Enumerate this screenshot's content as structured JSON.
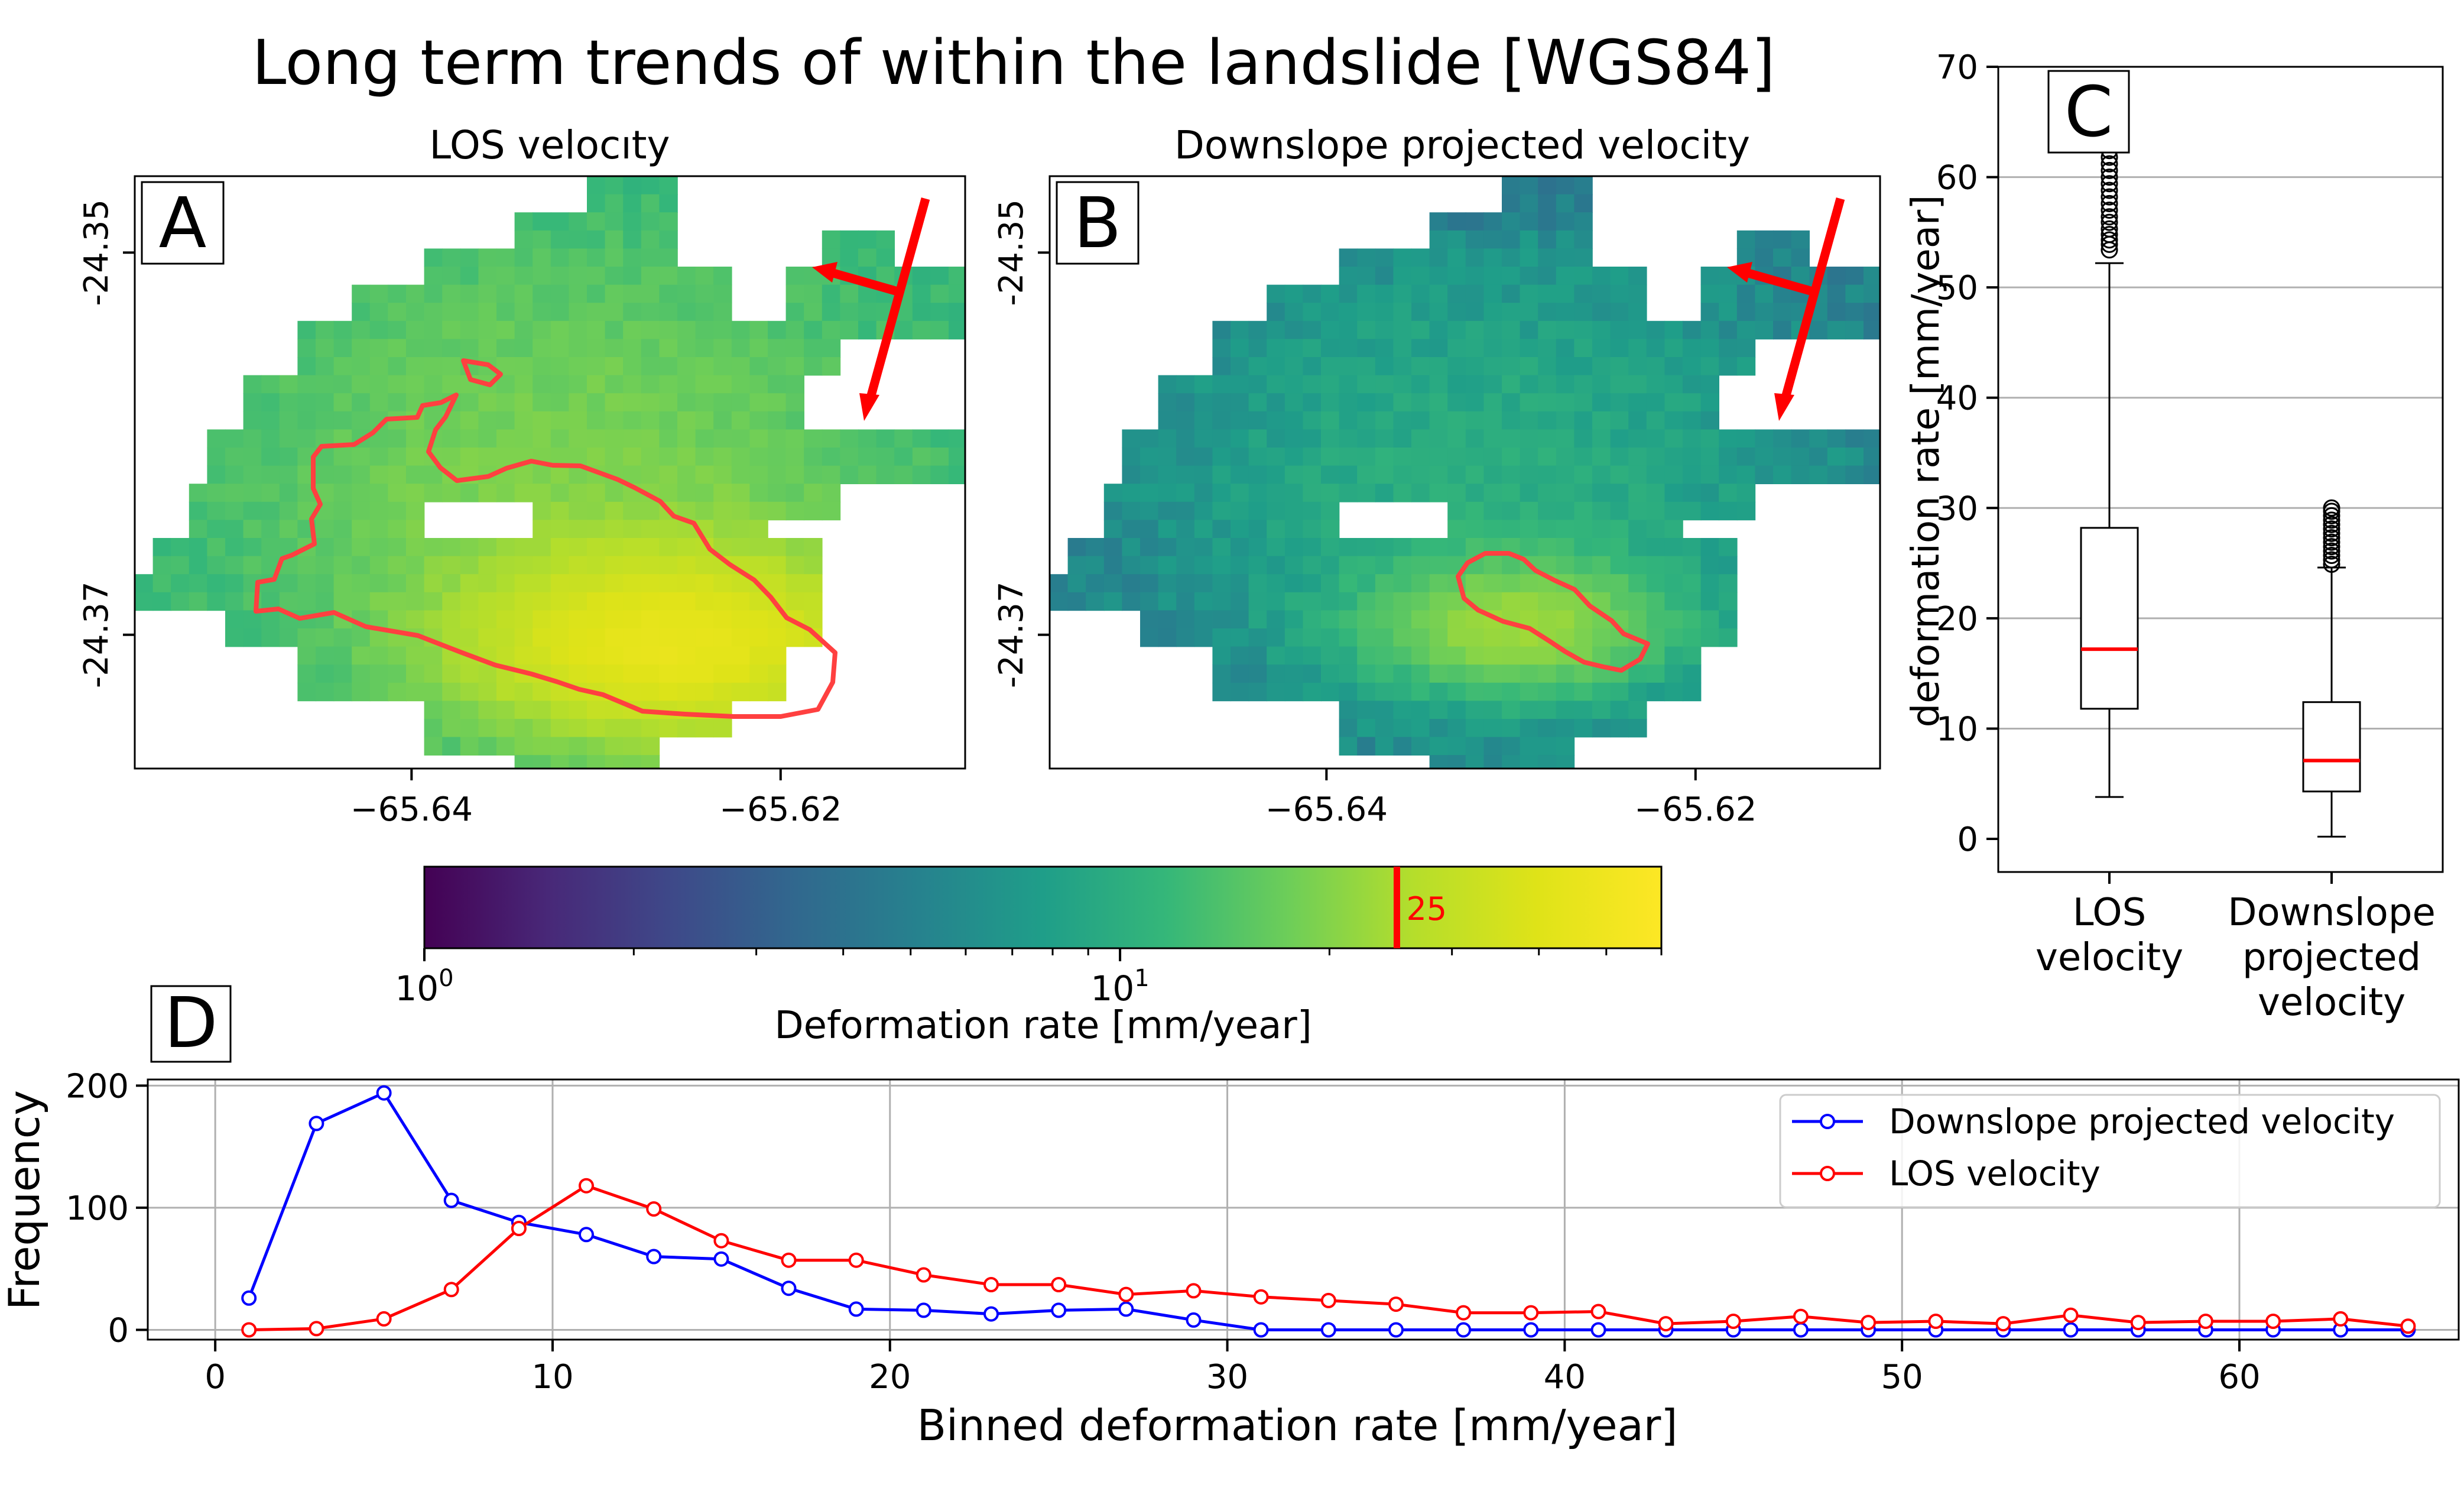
{
  "figure": {
    "title": "Long term trends of within the landslide [WGS84]"
  },
  "colors": {
    "los": "#ff0000",
    "downslope": "#0000ff",
    "outline": "#ff4040",
    "arrow": "#ff0000",
    "median": "#ff0000",
    "grid": "#b0b0b0"
  },
  "chart_data": [
    {
      "panel": "A",
      "type": "heatmap",
      "title": "LOS velocıty",
      "x_ticks": [
        -65.64,
        -65.62
      ],
      "x_tick_labels": [
        "−65.64",
        "−65.62"
      ],
      "y_ticks": [
        -24.35,
        -24.37
      ],
      "y_tick_labels": [
        "-24.35",
        "-24.37"
      ],
      "xlim": [
        -65.655,
        -65.61
      ],
      "ylim": [
        -24.377,
        -24.346
      ],
      "value_range_mm_per_year": [
        12,
        50
      ],
      "colormap": "viridis",
      "scale": "log"
    },
    {
      "panel": "B",
      "type": "heatmap",
      "title": "Downslope projected velocity",
      "x_ticks": [
        -65.64,
        -65.62
      ],
      "x_tick_labels": [
        "−65.64",
        "−65.62"
      ],
      "y_ticks": [
        -24.35,
        -24.37
      ],
      "y_tick_labels": [
        "-24.35",
        "-24.37"
      ],
      "xlim": [
        -65.655,
        -65.61
      ],
      "ylim": [
        -24.377,
        -24.346
      ],
      "value_range_mm_per_year": [
        1,
        30
      ],
      "colormap": "viridis",
      "scale": "log"
    },
    {
      "panel": "colorbar",
      "type": "colorbar",
      "label": "Deformation rate [mm/year]",
      "scale": "log",
      "range": [
        1,
        60
      ],
      "major_ticks": [
        1,
        10
      ],
      "major_tick_labels": [
        {
          "base": "10",
          "exp": "0"
        },
        {
          "base": "10",
          "exp": "1"
        }
      ],
      "threshold": {
        "value": 25,
        "label": "25"
      }
    },
    {
      "panel": "C",
      "type": "box",
      "ylabel": "deformation rate [mm/year]",
      "ylim": [
        -3,
        70
      ],
      "y_ticks": [
        0,
        10,
        20,
        30,
        40,
        50,
        60,
        70
      ],
      "grid": "horizontal",
      "boxes": [
        {
          "label_lines": [
            "LOS",
            "velocity"
          ],
          "whisker_low": 3.8,
          "q1": 11.8,
          "median": 17.2,
          "q3": 28.2,
          "whisker_high": 52.2,
          "outliers": [
            53.4,
            53.9,
            54.3,
            54.8,
            55.3,
            55.9,
            56.4,
            57.0,
            57.6,
            58.2,
            58.8,
            59.4,
            60.0,
            60.6,
            61.2,
            61.8,
            62.4,
            63.0,
            63.6,
            64.2,
            64.8,
            65.3,
            65.9,
            66.7
          ]
        },
        {
          "label_lines": [
            "Downslope",
            "projected",
            "velocity"
          ],
          "whisker_low": 0.2,
          "q1": 4.3,
          "median": 7.1,
          "q3": 12.4,
          "whisker_high": 24.6,
          "outliers": [
            24.9,
            25.3,
            25.7,
            26.1,
            26.5,
            26.9,
            27.3,
            27.7,
            28.1,
            28.5,
            28.9,
            29.3,
            29.7,
            30.0
          ]
        }
      ]
    },
    {
      "panel": "D",
      "type": "line",
      "xlabel": "Binned deformation rate [mm/year]",
      "ylabel": "Frequency",
      "xlim": [
        -2,
        66.5
      ],
      "ylim": [
        -8,
        205
      ],
      "x_ticks": [
        0,
        10,
        20,
        30,
        40,
        50,
        60
      ],
      "y_ticks": [
        0,
        100,
        200
      ],
      "grid": true,
      "legend": "top-right",
      "x": [
        1,
        3,
        5,
        7,
        9,
        11,
        13,
        15,
        17,
        19,
        21,
        23,
        25,
        27,
        29,
        31,
        33,
        35,
        37,
        39,
        41,
        43,
        45,
        47,
        49,
        51,
        53,
        55,
        57,
        59,
        61,
        63,
        65
      ],
      "series": [
        {
          "name": "Downslope projected velocity",
          "color": "#0000ff",
          "values": [
            26,
            169,
            194,
            106,
            88,
            78,
            60,
            58,
            34,
            17,
            16,
            13,
            16,
            17,
            8,
            0,
            0,
            0,
            0,
            0,
            0,
            0,
            0,
            0,
            0,
            0,
            0,
            0,
            0,
            0,
            0,
            0,
            0
          ]
        },
        {
          "name": "LOS velocity",
          "color": "#ff0000",
          "values": [
            0,
            1,
            9,
            33,
            83,
            118,
            99,
            73,
            57,
            57,
            45,
            37,
            37,
            29,
            32,
            27,
            24,
            21,
            14,
            14,
            15,
            5,
            7,
            11,
            6,
            7,
            5,
            12,
            6,
            7,
            7,
            9,
            3
          ]
        }
      ]
    }
  ]
}
